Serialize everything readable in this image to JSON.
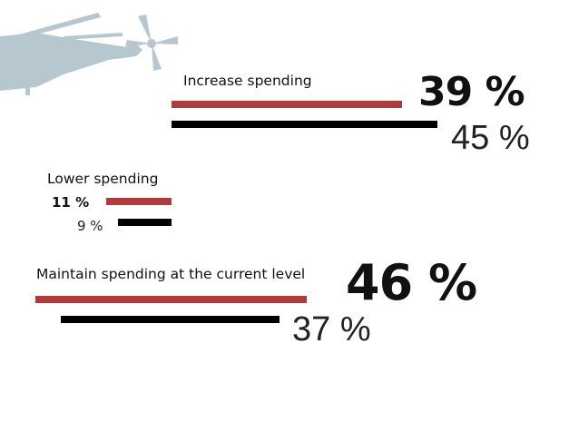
{
  "colors": {
    "series_a": "#b13a3d",
    "series_b": "#000000",
    "helicopter": "#b7c7d0"
  },
  "decoration": {
    "icon": "helicopter-icon"
  },
  "chart_data": {
    "type": "bar",
    "orientation": "horizontal",
    "title": "",
    "categories": [
      "Increase spending",
      "Lower spending",
      "Maintain spending at the current level"
    ],
    "series": [
      {
        "values": [
          39,
          11,
          46
        ],
        "labels": [
          "39 %",
          "11 %",
          "46 %"
        ],
        "color": "#b13a3d"
      },
      {
        "values": [
          45,
          9,
          37
        ],
        "labels": [
          "45 %",
          "9 %",
          "37 %"
        ],
        "color": "#000000"
      }
    ],
    "unit": "%",
    "grid": false,
    "legend": "none"
  }
}
